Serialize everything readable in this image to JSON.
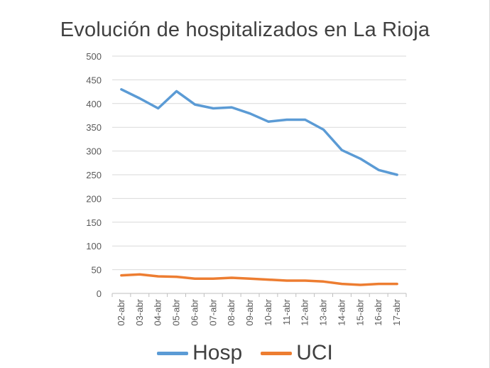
{
  "chart_data": {
    "type": "line",
    "title": "Evolución de hospitalizados en La Rioja",
    "xlabel": "",
    "ylabel": "",
    "ylim": [
      0,
      500
    ],
    "yticks": [
      0,
      50,
      100,
      150,
      200,
      250,
      300,
      350,
      400,
      450,
      500
    ],
    "grid": true,
    "legend_position": "bottom",
    "categories": [
      "02-abr",
      "03-abr",
      "04-abr",
      "05-abr",
      "06-abr",
      "07-abr",
      "08-abr",
      "09-abr",
      "10-abr",
      "11-abr",
      "12-abr",
      "13-abr",
      "14-abr",
      "15-abr",
      "16-abr",
      "17-abr"
    ],
    "series": [
      {
        "name": "Hosp",
        "color": "#5b9bd5",
        "values": [
          430,
          411,
          390,
          426,
          398,
          390,
          392,
          379,
          362,
          366,
          366,
          345,
          302,
          284,
          260,
          250
        ]
      },
      {
        "name": "UCI",
        "color": "#ed7d31",
        "values": [
          38,
          40,
          36,
          35,
          31,
          31,
          33,
          31,
          29,
          27,
          27,
          25,
          20,
          18,
          20,
          20
        ]
      }
    ]
  }
}
